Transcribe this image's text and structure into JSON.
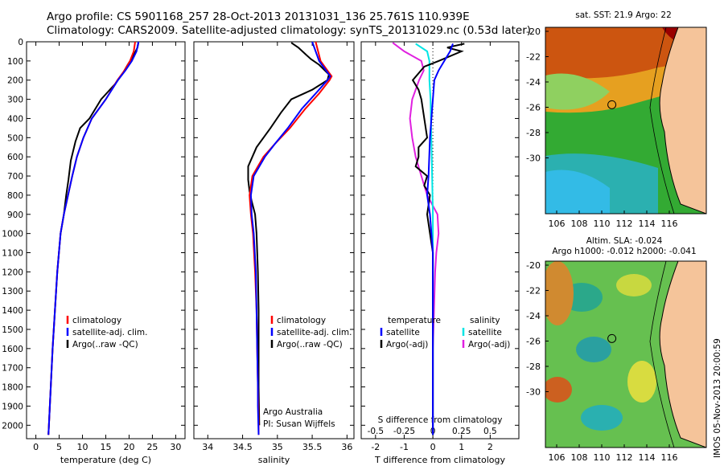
{
  "header": {
    "line1": "Argo profile: CS 5901168_257 28-Oct-2013 20131031_136 25.761S 110.939E",
    "line2": "Climatology: CARS2009. Satellite-adjusted climatology: synTS_20131029.nc (0.53d later)"
  },
  "colors": {
    "clim": "#ff0000",
    "sat": "#0000ff",
    "argo": "#000000",
    "sat_sal": "#00e5e5",
    "argo_sal": "#e020e0",
    "land": "#f5c49a"
  },
  "chart_data": [
    {
      "type": "line",
      "panel": "temperature",
      "xlabel": "temperature (deg C)",
      "xlim": [
        -2,
        32
      ],
      "ylim": [
        2070,
        0
      ],
      "xticks": [
        0,
        5,
        10,
        15,
        20,
        25,
        30
      ],
      "yticks": [
        0,
        100,
        200,
        300,
        400,
        500,
        600,
        700,
        800,
        900,
        1000,
        1100,
        1200,
        1300,
        1400,
        1500,
        1600,
        1700,
        1800,
        1900,
        2000
      ],
      "legend": [
        "climatology",
        "satellite-adj. clim.",
        "Argo(..raw -QC)"
      ],
      "series": [
        {
          "name": "climatology",
          "points": [
            [
              21.3,
              0
            ],
            [
              21.0,
              50
            ],
            [
              20.2,
              100
            ],
            [
              19.0,
              150
            ],
            [
              17.5,
              200
            ],
            [
              15.0,
              300
            ],
            [
              12.0,
              400
            ],
            [
              10.2,
              500
            ],
            [
              8.8,
              600
            ],
            [
              7.8,
              700
            ],
            [
              6.9,
              800
            ],
            [
              6.0,
              900
            ],
            [
              5.3,
              1000
            ],
            [
              4.6,
              1200
            ],
            [
              4.1,
              1400
            ],
            [
              3.6,
              1600
            ],
            [
              3.2,
              1800
            ],
            [
              2.8,
              2000
            ],
            [
              2.7,
              2050
            ]
          ]
        },
        {
          "name": "satellite-adj. clim.",
          "points": [
            [
              22.0,
              0
            ],
            [
              21.6,
              50
            ],
            [
              20.6,
              100
            ],
            [
              19.2,
              150
            ],
            [
              17.6,
              200
            ],
            [
              15.0,
              300
            ],
            [
              12.0,
              400
            ],
            [
              10.2,
              500
            ],
            [
              8.8,
              600
            ],
            [
              7.8,
              700
            ],
            [
              6.9,
              800
            ],
            [
              6.0,
              900
            ],
            [
              5.3,
              1000
            ],
            [
              4.6,
              1200
            ],
            [
              4.1,
              1400
            ],
            [
              3.6,
              1600
            ],
            [
              3.2,
              1800
            ],
            [
              2.8,
              2000
            ],
            [
              2.7,
              2050
            ]
          ]
        },
        {
          "name": "Argo(..raw -QC)",
          "points": [
            [
              22.0,
              5
            ],
            [
              21.8,
              30
            ],
            [
              21.0,
              70
            ],
            [
              19.7,
              120
            ],
            [
              18.5,
              170
            ],
            [
              17.0,
              220
            ],
            [
              14.0,
              300
            ],
            [
              11.5,
              400
            ],
            [
              9.5,
              450
            ],
            [
              8.5,
              520
            ],
            [
              7.5,
              620
            ],
            [
              7.0,
              720
            ],
            [
              6.5,
              800
            ],
            [
              6.0,
              900
            ],
            [
              5.3,
              1000
            ],
            [
              4.6,
              1200
            ],
            [
              4.1,
              1400
            ],
            [
              3.6,
              1600
            ],
            [
              3.2,
              1800
            ],
            [
              2.8,
              2000
            ],
            [
              2.7,
              2050
            ]
          ]
        }
      ]
    },
    {
      "type": "line",
      "panel": "salinity",
      "xlabel": "salinity",
      "xlim": [
        33.8,
        36.1
      ],
      "ylim": [
        2070,
        0
      ],
      "xticks": [
        34,
        34.5,
        35,
        35.5,
        36
      ],
      "legend": [
        "climatology",
        "satellite-adj. clim.",
        "Argo(..raw -QC)"
      ],
      "annotation": [
        "Argo Australia",
        "PI: Susan Wijffels"
      ],
      "series": [
        {
          "name": "climatology",
          "points": [
            [
              35.55,
              0
            ],
            [
              35.62,
              100
            ],
            [
              35.72,
              150
            ],
            [
              35.78,
              180
            ],
            [
              35.75,
              200
            ],
            [
              35.6,
              270
            ],
            [
              35.4,
              350
            ],
            [
              35.18,
              450
            ],
            [
              34.97,
              530
            ],
            [
              34.8,
              600
            ],
            [
              34.64,
              700
            ],
            [
              34.6,
              800
            ],
            [
              34.62,
              900
            ],
            [
              34.65,
              1000
            ],
            [
              34.68,
              1200
            ],
            [
              34.7,
              1400
            ],
            [
              34.71,
              1600
            ],
            [
              34.72,
              1800
            ],
            [
              34.73,
              2000
            ],
            [
              34.73,
              2050
            ]
          ]
        },
        {
          "name": "satellite-adj. clim.",
          "points": [
            [
              35.5,
              0
            ],
            [
              35.6,
              100
            ],
            [
              35.7,
              150
            ],
            [
              35.76,
              180
            ],
            [
              35.72,
              200
            ],
            [
              35.55,
              270
            ],
            [
              35.35,
              350
            ],
            [
              35.15,
              450
            ],
            [
              34.97,
              530
            ],
            [
              34.82,
              600
            ],
            [
              34.66,
              700
            ],
            [
              34.62,
              800
            ],
            [
              34.63,
              900
            ],
            [
              34.66,
              1000
            ],
            [
              34.69,
              1200
            ],
            [
              34.7,
              1400
            ],
            [
              34.71,
              1600
            ],
            [
              34.72,
              1800
            ],
            [
              34.72,
              1900
            ],
            [
              34.73,
              2050
            ]
          ]
        },
        {
          "name": "Argo(..raw -QC)",
          "points": [
            [
              35.2,
              5
            ],
            [
              35.3,
              30
            ],
            [
              35.48,
              90
            ],
            [
              35.6,
              120
            ],
            [
              35.74,
              170
            ],
            [
              35.72,
              200
            ],
            [
              35.5,
              250
            ],
            [
              35.2,
              300
            ],
            [
              35.05,
              370
            ],
            [
              34.9,
              450
            ],
            [
              34.7,
              550
            ],
            [
              34.58,
              650
            ],
            [
              34.58,
              720
            ],
            [
              34.6,
              780
            ],
            [
              34.63,
              830
            ],
            [
              34.68,
              900
            ],
            [
              34.7,
              1000
            ],
            [
              34.72,
              1200
            ],
            [
              34.73,
              1400
            ],
            [
              34.73,
              1600
            ],
            [
              34.73,
              1800
            ],
            [
              34.74,
              2000
            ]
          ]
        }
      ]
    },
    {
      "type": "line",
      "panel": "differences",
      "xlabel": "T difference from climatology",
      "xlabel_top": "S difference from climatology",
      "xlim": [
        -2.5,
        3.0
      ],
      "ylim": [
        2070,
        0
      ],
      "xticks": [
        -2,
        -1,
        0,
        1,
        2
      ],
      "xticks_top": [
        "-0.5",
        "-0.25",
        "0",
        "0.25",
        "0.5"
      ],
      "legend_t": [
        "temperature",
        "satellite",
        "Argo(-adj)"
      ],
      "legend_s": [
        "salinity",
        "satellite",
        "Argo(-adj)"
      ],
      "series": [
        {
          "name": "T satellite",
          "points": [
            [
              0.7,
              10
            ],
            [
              0.6,
              50
            ],
            [
              0.4,
              100
            ],
            [
              0.2,
              150
            ],
            [
              0.05,
              200
            ],
            [
              0,
              300
            ],
            [
              -0.1,
              500
            ],
            [
              -0.15,
              700
            ],
            [
              -0.2,
              800
            ],
            [
              -0.1,
              900
            ],
            [
              0,
              1100
            ],
            [
              0,
              1500
            ],
            [
              0,
              2050
            ]
          ]
        },
        {
          "name": "T Argo(-adj)",
          "points": [
            [
              1.1,
              10
            ],
            [
              0.5,
              30
            ],
            [
              1.0,
              50
            ],
            [
              0.2,
              100
            ],
            [
              -0.3,
              130
            ],
            [
              -0.7,
              200
            ],
            [
              -0.5,
              250
            ],
            [
              -0.4,
              300
            ],
            [
              -0.3,
              400
            ],
            [
              -0.2,
              500
            ],
            [
              -0.5,
              550
            ],
            [
              -0.5,
              600
            ],
            [
              -0.6,
              650
            ],
            [
              -0.2,
              700
            ],
            [
              -0.3,
              750
            ],
            [
              -0.1,
              800
            ],
            [
              -0.2,
              900
            ],
            [
              -0.1,
              1000
            ],
            [
              0,
              1100
            ],
            [
              0,
              1500
            ],
            [
              0,
              2050
            ]
          ]
        },
        {
          "name": "S satellite",
          "points": [
            [
              -0.15,
              10
            ],
            [
              -0.05,
              50
            ],
            [
              -0.03,
              100
            ],
            [
              -0.03,
              200
            ],
            [
              -0.02,
              300
            ],
            [
              -0.01,
              600
            ],
            [
              0,
              900
            ],
            [
              0,
              1500
            ],
            [
              0,
              2050
            ]
          ]
        },
        {
          "name": "S Argo(-adj)",
          "points": [
            [
              -0.35,
              5
            ],
            [
              -0.25,
              50
            ],
            [
              -0.1,
              100
            ],
            [
              -0.08,
              150
            ],
            [
              -0.12,
              200
            ],
            [
              -0.18,
              300
            ],
            [
              -0.2,
              400
            ],
            [
              -0.18,
              500
            ],
            [
              -0.15,
              600
            ],
            [
              -0.1,
              700
            ],
            [
              -0.05,
              800
            ],
            [
              0.04,
              900
            ],
            [
              0.05,
              1000
            ],
            [
              0.03,
              1100
            ],
            [
              0.02,
              1200
            ],
            [
              0.01,
              1400
            ],
            [
              0,
              1600
            ],
            [
              0,
              2050
            ]
          ]
        }
      ]
    }
  ],
  "maps": [
    {
      "title": "sat. SST: 21.9 Argo: 22",
      "xticks": [
        "106",
        "108",
        "110",
        "112",
        "114",
        "116"
      ],
      "yticks": [
        "-20",
        "-22",
        "-24",
        "-26",
        "-28",
        "-30"
      ],
      "float_lon": 110.9,
      "float_lat": -25.8
    },
    {
      "title": "Altim. SLA: -0.024",
      "title2": "Argo h1000: -0.012 h2000: -0.041",
      "xticks": [
        "106",
        "108",
        "110",
        "112",
        "114",
        "116"
      ],
      "yticks": [
        "-20",
        "-22",
        "-24",
        "-26",
        "-28",
        "-30"
      ],
      "float_lon": 110.9,
      "float_lat": -25.8
    }
  ],
  "footer": "IMOS 05-Nov-2013 20:00:59"
}
